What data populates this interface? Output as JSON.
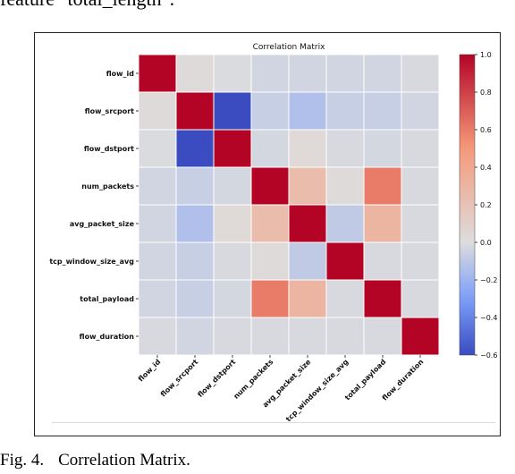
{
  "top_text": "feature \"total_length\".",
  "caption": {
    "label": "Fig. 4.",
    "text": "Correlation Matrix."
  },
  "chart_data": {
    "type": "heatmap",
    "title": "Correlation Matrix",
    "rows": [
      "flow_id",
      "flow_srcport",
      "flow_dstport",
      "num_packets",
      "avg_packet_size",
      "tcp_window_size_avg",
      "total_payload",
      "flow_duration"
    ],
    "columns": [
      "flow_id",
      "flow_srcport",
      "flow_dstport",
      "num_packets",
      "avg_packet_size",
      "tcp_window_size_avg",
      "total_payload",
      "flow_duration"
    ],
    "values": [
      [
        1.0,
        0.02,
        -0.01,
        -0.04,
        -0.04,
        -0.04,
        -0.04,
        -0.02
      ],
      [
        0.02,
        1.0,
        -0.6,
        -0.07,
        -0.14,
        -0.07,
        -0.07,
        -0.04
      ],
      [
        -0.01,
        -0.6,
        1.0,
        -0.03,
        0.03,
        -0.02,
        -0.03,
        -0.02
      ],
      [
        -0.04,
        -0.07,
        -0.03,
        1.0,
        0.25,
        0.02,
        0.6,
        -0.02
      ],
      [
        -0.04,
        -0.14,
        0.03,
        0.25,
        1.0,
        -0.09,
        0.3,
        -0.02
      ],
      [
        -0.04,
        -0.07,
        -0.02,
        0.02,
        -0.09,
        1.0,
        -0.02,
        -0.02
      ],
      [
        -0.04,
        -0.07,
        -0.03,
        0.6,
        0.3,
        -0.02,
        1.0,
        -0.02
      ],
      [
        -0.02,
        -0.04,
        -0.02,
        -0.02,
        -0.02,
        -0.02,
        -0.02,
        1.0
      ]
    ],
    "colormap": "coolwarm",
    "colorbar": {
      "min": -0.6,
      "max": 1.0,
      "ticks": [
        1.0,
        0.8,
        0.6,
        0.4,
        0.2,
        0.0,
        -0.2,
        -0.4,
        -0.6
      ],
      "tick_labels": [
        "1.0",
        "0.8",
        "0.6",
        "0.4",
        "0.2",
        "0.0",
        "−0.2",
        "−0.4",
        "−0.6"
      ]
    },
    "colors": {
      "low": "#3b4cc0",
      "mid": "#dddddd",
      "high": "#b40426"
    }
  }
}
